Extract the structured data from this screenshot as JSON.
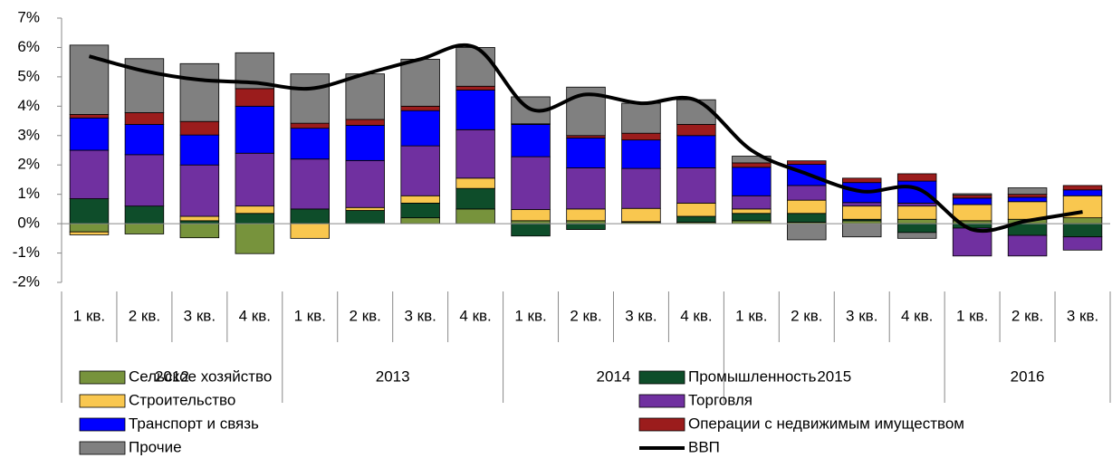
{
  "chart_data": {
    "type": "bar",
    "stacked": true,
    "categories": [
      "1 кв.",
      "2 кв.",
      "3 кв.",
      "4 кв.",
      "1 кв.",
      "2 кв.",
      "3 кв.",
      "4 кв.",
      "1 кв.",
      "2 кв.",
      "3 кв.",
      "4 кв.",
      "1 кв.",
      "2 кв.",
      "3 кв.",
      "4 кв.",
      "1 кв.",
      "2 кв.",
      "3 кв."
    ],
    "years": [
      "2012",
      null,
      null,
      null,
      "2013",
      null,
      null,
      null,
      "2014",
      null,
      null,
      null,
      "2015",
      null,
      null,
      null,
      "2016",
      null,
      null
    ],
    "series": [
      {
        "name": "Сельское хозяйство",
        "color": "#77933c",
        "values": [
          -0.28,
          -0.35,
          -0.48,
          -1.02,
          0,
          0,
          0.2,
          0.5,
          0.1,
          0.1,
          0.05,
          0.05,
          0.1,
          0.05,
          0.1,
          0.15,
          0.1,
          0.15,
          0.2
        ]
      },
      {
        "name": "Промышленность",
        "color": "#0e4d2a",
        "values": [
          0.85,
          0.6,
          0.1,
          0.35,
          0.5,
          0.45,
          0.5,
          0.7,
          -0.42,
          -0.2,
          0.02,
          0.2,
          0.25,
          0.3,
          0.05,
          -0.3,
          -0.15,
          -0.4,
          -0.45
        ]
      },
      {
        "name": "Строительство",
        "color": "#f9c74f",
        "values": [
          -0.1,
          0,
          0.15,
          0.25,
          -0.5,
          0.1,
          0.25,
          0.35,
          0.38,
          0.4,
          0.45,
          0.45,
          0.15,
          0.45,
          0.45,
          0.45,
          0.55,
          0.6,
          0.75
        ]
      },
      {
        "name": "Торговля",
        "color": "#7030a0",
        "values": [
          1.65,
          1.75,
          1.75,
          1.8,
          1.7,
          1.6,
          1.7,
          1.65,
          1.8,
          1.4,
          1.36,
          1.2,
          0.45,
          0.5,
          0.12,
          0.1,
          -0.95,
          -0.7,
          -0.45
        ]
      },
      {
        "name": "Транспорт и связь",
        "color": "#0000ff",
        "values": [
          1.1,
          1.03,
          1.02,
          1.6,
          1.05,
          1.2,
          1.2,
          1.35,
          1.1,
          1.02,
          0.97,
          1.1,
          0.97,
          0.72,
          0.68,
          0.75,
          0.22,
          0.15,
          0.2
        ]
      },
      {
        "name": "Операции с недвижимым имуществом",
        "color": "#9b1c1c",
        "values": [
          0.12,
          0.4,
          0.46,
          0.6,
          0.17,
          0.2,
          0.15,
          0.13,
          0.02,
          0.08,
          0.23,
          0.38,
          0.15,
          0.12,
          0.15,
          0.25,
          0.1,
          0.1,
          0.15
        ]
      },
      {
        "name": "Прочие",
        "color": "#808080",
        "values": [
          2.36,
          1.84,
          1.97,
          1.22,
          1.68,
          1.55,
          1.6,
          1.32,
          0.92,
          1.65,
          1.02,
          0.84,
          0.23,
          -0.55,
          -0.45,
          -0.2,
          0.05,
          0.22,
          0
        ]
      },
      {
        "name": "ВВП",
        "color": "#000000",
        "type": "line",
        "values": [
          5.7,
          5.2,
          4.9,
          4.8,
          4.6,
          5.1,
          5.6,
          6.0,
          3.9,
          4.4,
          4.1,
          4.2,
          2.5,
          1.7,
          1.1,
          1.2,
          -0.2,
          0.1,
          0.4
        ]
      }
    ],
    "ylim": [
      -2,
      7
    ],
    "yticks": [
      {
        "value": -2,
        "label": "-2%"
      },
      {
        "value": -1,
        "label": "-1%"
      },
      {
        "value": 0,
        "label": "0%"
      },
      {
        "value": 1,
        "label": "1%"
      },
      {
        "value": 2,
        "label": "2%"
      },
      {
        "value": 3,
        "label": "3%"
      },
      {
        "value": 4,
        "label": "4%"
      },
      {
        "value": 5,
        "label": "5%"
      },
      {
        "value": 6,
        "label": "6%"
      },
      {
        "value": 7,
        "label": "7%"
      }
    ],
    "legend": "bottom"
  }
}
